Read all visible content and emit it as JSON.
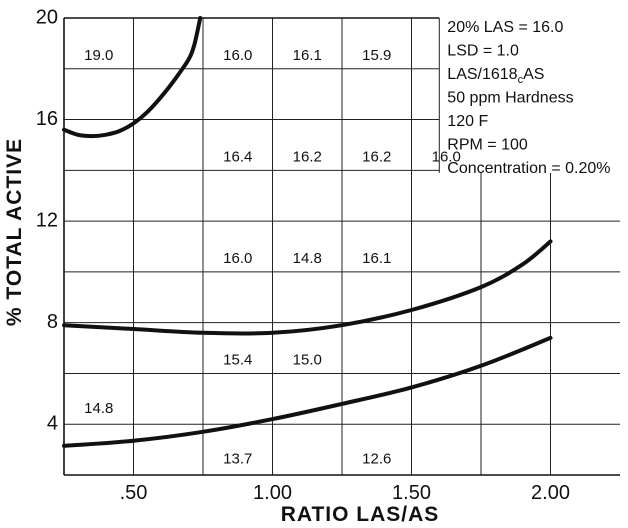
{
  "chart_data": {
    "type": "line",
    "xlabel": "RATIO LAS/AS",
    "ylabel": "% TOTAL ACTIVE",
    "xlim": [
      0.25,
      2.25
    ],
    "ylim": [
      2,
      20
    ],
    "x_ticks": [
      {
        "value": 0.5,
        "label": ".50"
      },
      {
        "value": 1.0,
        "label": "1.00"
      },
      {
        "value": 1.5,
        "label": "1.50"
      },
      {
        "value": 2.0,
        "label": "2.00"
      }
    ],
    "y_ticks": [
      {
        "value": 4,
        "label": "4"
      },
      {
        "value": 8,
        "label": "8"
      },
      {
        "value": 12,
        "label": "12"
      },
      {
        "value": 16,
        "label": "16"
      },
      {
        "value": 20,
        "label": "20"
      }
    ],
    "grid_x": [
      0.5,
      0.75,
      1.0,
      1.25,
      1.5,
      1.75,
      2.0
    ],
    "grid_y": [
      4,
      6,
      8,
      10,
      12,
      14,
      16,
      18
    ],
    "grid": true,
    "series": [
      {
        "x": [
          0.25,
          0.3,
          0.35,
          0.4,
          0.45,
          0.5,
          0.55,
          0.6,
          0.65,
          0.7,
          0.72,
          0.74
        ],
        "y": [
          15.6,
          15.4,
          15.35,
          15.4,
          15.55,
          15.85,
          16.3,
          16.9,
          17.6,
          18.4,
          19.0,
          20.0
        ]
      },
      {
        "x": [
          0.25,
          0.5,
          0.75,
          1.0,
          1.25,
          1.5,
          1.75,
          1.9,
          2.0
        ],
        "y": [
          7.9,
          7.75,
          7.6,
          7.6,
          7.9,
          8.5,
          9.4,
          10.3,
          11.2
        ]
      },
      {
        "x": [
          0.25,
          0.5,
          0.75,
          1.0,
          1.25,
          1.5,
          1.75,
          2.0
        ],
        "y": [
          3.15,
          3.35,
          3.7,
          4.2,
          4.8,
          5.45,
          6.3,
          7.4
        ]
      }
    ],
    "data_labels": [
      {
        "x": 0.375,
        "y": 18.5,
        "text": "19.0"
      },
      {
        "x": 0.875,
        "y": 18.5,
        "text": "16.0"
      },
      {
        "x": 1.125,
        "y": 18.5,
        "text": "16.1"
      },
      {
        "x": 1.375,
        "y": 18.5,
        "text": "15.9"
      },
      {
        "x": 0.875,
        "y": 14.5,
        "text": "16.4"
      },
      {
        "x": 1.125,
        "y": 14.5,
        "text": "16.2"
      },
      {
        "x": 1.375,
        "y": 14.5,
        "text": "16.2"
      },
      {
        "x": 1.625,
        "y": 14.5,
        "text": "16.0"
      },
      {
        "x": 0.875,
        "y": 10.5,
        "text": "16.0"
      },
      {
        "x": 1.125,
        "y": 10.5,
        "text": "14.8"
      },
      {
        "x": 1.375,
        "y": 10.5,
        "text": "16.1"
      },
      {
        "x": 0.875,
        "y": 6.5,
        "text": "15.4"
      },
      {
        "x": 1.125,
        "y": 6.5,
        "text": "15.0"
      },
      {
        "x": 0.375,
        "y": 4.6,
        "text": "14.8"
      },
      {
        "x": 0.875,
        "y": 2.6,
        "text": "13.7"
      },
      {
        "x": 1.375,
        "y": 2.6,
        "text": "12.6"
      }
    ],
    "annotations": [
      "20% LAS = 16.0",
      "LSD = 1.0",
      "LAS/1618_cAS",
      "50 ppm Hardness",
      "120  F",
      "RPM = 100",
      "Concentration = 0.20%"
    ],
    "annotation_placement": "top-right"
  }
}
